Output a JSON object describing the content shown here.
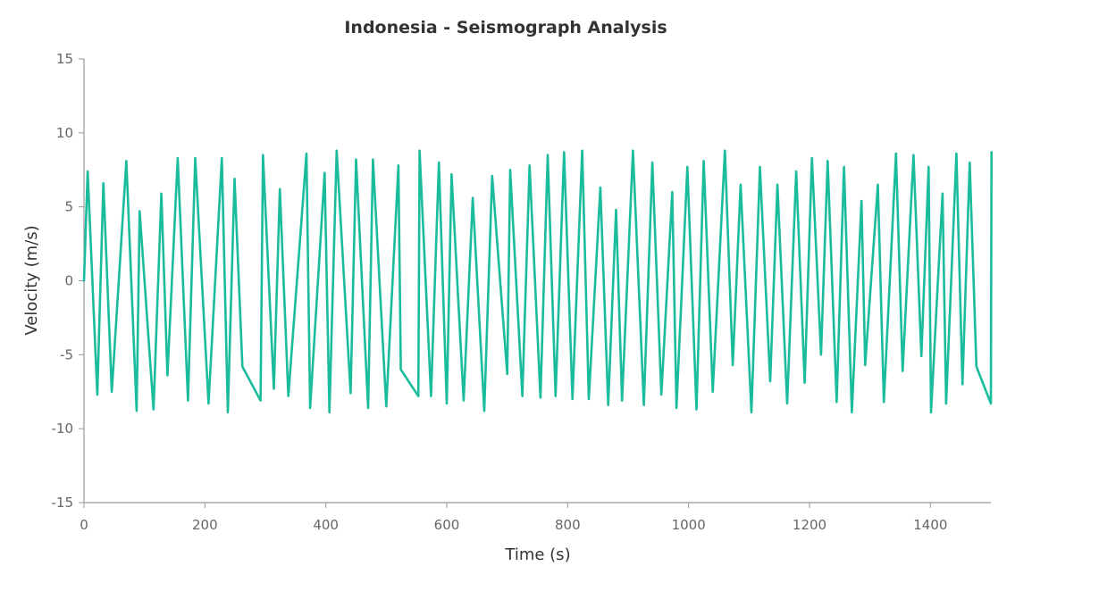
{
  "chart_data": {
    "type": "line",
    "title": "Indonesia - Seismograph Analysis",
    "xlabel": "Time (s)",
    "ylabel": "Velocity (m/s)",
    "xlim": [
      0,
      1500
    ],
    "ylim": [
      -15,
      15
    ],
    "x_ticks": [
      0,
      200,
      400,
      600,
      800,
      1000,
      1200,
      1400
    ],
    "y_ticks": [
      -15,
      -10,
      -5,
      0,
      5,
      10,
      15
    ],
    "x_tick_labels": [
      "0",
      "200",
      "400",
      "600",
      "800",
      "1000",
      "1200",
      "1400"
    ],
    "y_tick_labels": [
      "-15",
      "-10",
      "-5",
      "0",
      "5",
      "10",
      "15"
    ],
    "line_color": "#1abc9c",
    "series": [
      {
        "x": [
          0,
          6,
          22,
          32,
          46,
          70,
          87,
          92,
          115,
          128,
          138,
          155,
          172,
          184,
          206,
          228,
          238,
          249,
          262,
          292,
          296,
          314,
          324,
          338,
          368,
          374,
          398,
          406,
          418,
          441,
          450,
          470,
          478,
          500,
          520,
          524,
          553,
          555,
          574,
          587,
          600,
          608,
          628,
          643,
          662,
          675,
          700,
          705,
          725,
          737,
          755,
          767,
          780,
          794,
          808,
          824,
          835,
          854,
          867,
          880,
          890,
          908,
          926,
          940,
          955,
          973,
          980,
          998,
          1013,
          1025,
          1040,
          1060,
          1073,
          1086,
          1104,
          1118,
          1135,
          1147,
          1163,
          1178,
          1192,
          1204,
          1219,
          1230,
          1245,
          1257,
          1270,
          1286,
          1292,
          1313,
          1323,
          1343,
          1354,
          1372,
          1385,
          1397,
          1401,
          1420,
          1426,
          1443,
          1453,
          1465,
          1476,
          1500,
          1501
        ],
        "y": [
          0,
          7.4,
          -7.7,
          6.6,
          -7.5,
          8.1,
          -8.8,
          4.7,
          -8.7,
          5.9,
          -6.4,
          8.3,
          -8.1,
          8.3,
          -8.3,
          8.3,
          -8.9,
          6.9,
          -5.8,
          -8.1,
          8.5,
          -7.3,
          6.2,
          -7.8,
          8.6,
          -8.6,
          7.3,
          -8.9,
          8.8,
          -7.6,
          8.2,
          -8.6,
          8.2,
          -8.5,
          7.8,
          -6.0,
          -7.8,
          8.8,
          -7.8,
          8.0,
          -8.3,
          7.2,
          -8.1,
          5.6,
          -8.8,
          7.1,
          -6.3,
          7.5,
          -7.8,
          7.8,
          -7.9,
          8.5,
          -7.8,
          8.7,
          -8.0,
          8.8,
          -8.0,
          6.3,
          -8.4,
          4.8,
          -8.1,
          8.8,
          -8.4,
          8.0,
          -7.7,
          6.0,
          -8.6,
          7.7,
          -8.7,
          8.1,
          -7.5,
          8.8,
          -5.7,
          6.5,
          -8.9,
          7.7,
          -6.8,
          6.5,
          -8.3,
          7.4,
          -6.9,
          8.3,
          -5.0,
          8.1,
          -8.2,
          7.7,
          -8.9,
          5.4,
          -5.7,
          6.5,
          -8.2,
          8.6,
          -6.1,
          8.5,
          -5.1,
          7.7,
          -8.9,
          5.9,
          -8.3,
          8.6,
          -7.0,
          8.0,
          -5.8,
          -8.3,
          8.7
        ]
      }
    ]
  }
}
